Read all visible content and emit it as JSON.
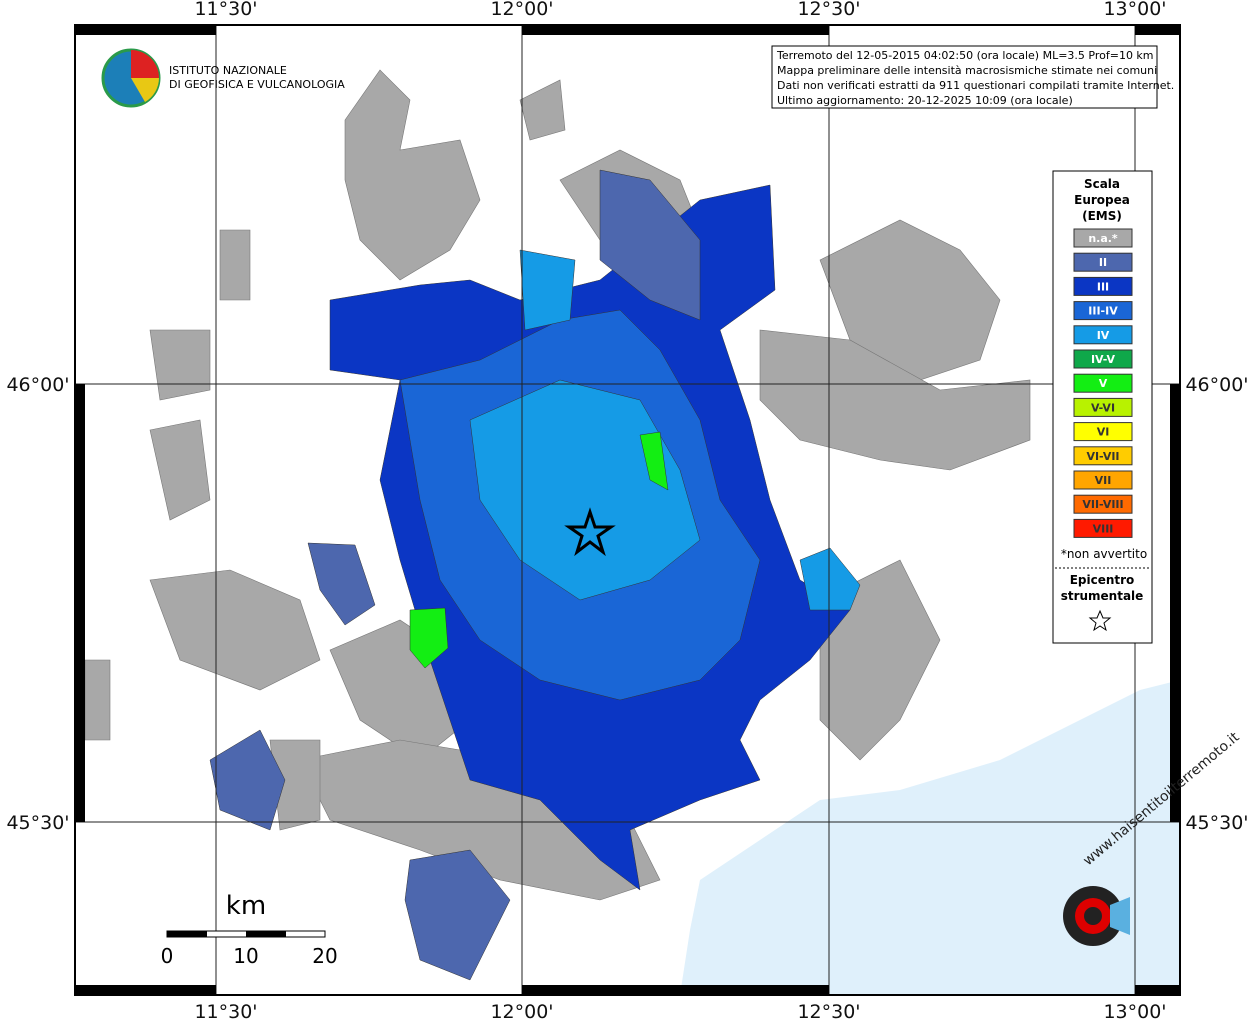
{
  "map": {
    "lon_labels": [
      "11°30'",
      "12°00'",
      "12°30'",
      "13°00'"
    ],
    "lat_labels": [
      "46°00'",
      "45°30'"
    ],
    "institute": [
      "ISTITUTO NAZIONALE",
      "DI GEOFISICA E VULCANOLOGIA"
    ],
    "info": [
      "Terremoto del 12-05-2015 04:02:50 (ora locale) ML=3.5 Prof=10 km",
      "Mappa preliminare delle intensità macrosismiche stimate nei comuni",
      "Dati non verificati estratti da 911 questionari compilati tramite Internet.",
      "Ultimo aggiornamento: 20-12-2025 10:09 (ora locale)"
    ],
    "legend": {
      "title": [
        "Scala",
        "Europea",
        "(EMS)"
      ],
      "items": [
        {
          "label": "n.a.*",
          "color": "#a8a8a8"
        },
        {
          "label": "II",
          "color": "#4d67ae"
        },
        {
          "label": "III",
          "color": "#0b36c4"
        },
        {
          "label": "III-IV",
          "color": "#1a66d6"
        },
        {
          "label": "IV",
          "color": "#159be6"
        },
        {
          "label": "IV-V",
          "color": "#0fa84a"
        },
        {
          "label": "V",
          "color": "#13ee13"
        },
        {
          "label": "V-VI",
          "color": "#b8f200"
        },
        {
          "label": "VI",
          "color": "#ffff00"
        },
        {
          "label": "VI-VII",
          "color": "#ffcc00"
        },
        {
          "label": "VII",
          "color": "#ffa500"
        },
        {
          "label": "VII-VIII",
          "color": "#ff6a00"
        },
        {
          "label": "VIII",
          "color": "#ff1a00"
        }
      ],
      "note": "*non avvertito",
      "epicenter": [
        "Epicentro",
        "strumentale"
      ]
    },
    "scale": {
      "unit": "km",
      "ticks": [
        "0",
        "10",
        "20"
      ]
    },
    "site": "www.haisentitoilterremoto.it"
  }
}
